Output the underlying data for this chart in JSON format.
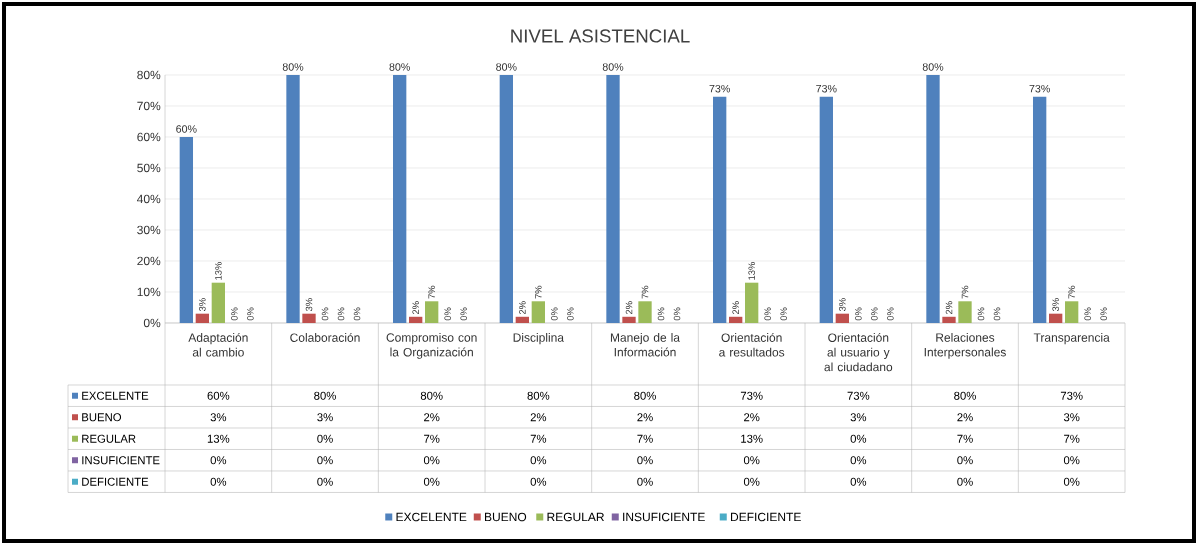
{
  "chart_data": {
    "type": "bar",
    "title": "NIVEL ASISTENCIAL",
    "categories": [
      "Adaptación al cambio",
      "Colaboración",
      "Compromiso con la Organización",
      "Disciplina",
      "Manejo de la Información",
      "Orientación a resultados",
      "Orientación al usuario y al ciudadano",
      "Relaciones Interpersonales",
      "Transparencia"
    ],
    "series": [
      {
        "name": "EXCELENTE",
        "color": "#4f81bd",
        "values": [
          60,
          80,
          80,
          80,
          80,
          73,
          73,
          80,
          73
        ],
        "value_labels": [
          "60%",
          "80%",
          "80%",
          "80%",
          "80%",
          "73%",
          "73%",
          "80%",
          "73%"
        ]
      },
      {
        "name": "BUENO",
        "color": "#c0504d",
        "values": [
          3,
          3,
          2,
          2,
          2,
          2,
          3,
          2,
          3
        ],
        "value_labels": [
          "3%",
          "3%",
          "2%",
          "2%",
          "2%",
          "2%",
          "3%",
          "2%",
          "3%"
        ]
      },
      {
        "name": "REGULAR",
        "color": "#9bbb59",
        "values": [
          13,
          0,
          7,
          7,
          7,
          13,
          0,
          7,
          7
        ],
        "value_labels": [
          "13%",
          "0%",
          "7%",
          "7%",
          "7%",
          "13%",
          "0%",
          "7%",
          "7%"
        ]
      },
      {
        "name": "INSUFICIENTE",
        "color": "#8064a2",
        "values": [
          0,
          0,
          0,
          0,
          0,
          0,
          0,
          0,
          0
        ],
        "value_labels": [
          "0%",
          "0%",
          "0%",
          "0%",
          "0%",
          "0%",
          "0%",
          "0%",
          "0%"
        ]
      },
      {
        "name": "DEFICIENTE",
        "color": "#4bacc6",
        "values": [
          0,
          0,
          0,
          0,
          0,
          0,
          0,
          0,
          0
        ],
        "value_labels": [
          "0%",
          "0%",
          "0%",
          "0%",
          "0%",
          "0%",
          "0%",
          "0%",
          "0%"
        ]
      }
    ],
    "ylim": [
      0,
      80
    ],
    "yticks": [
      {
        "value": 0,
        "label": "0%"
      },
      {
        "value": 10,
        "label": "10%"
      },
      {
        "value": 20,
        "label": "20%"
      },
      {
        "value": 30,
        "label": "30%"
      },
      {
        "value": 40,
        "label": "40%"
      },
      {
        "value": 50,
        "label": "50%"
      },
      {
        "value": 60,
        "label": "60%"
      },
      {
        "value": 70,
        "label": "70%"
      },
      {
        "value": 80,
        "label": "80%"
      }
    ],
    "grid": "y",
    "legend": "bottom"
  }
}
